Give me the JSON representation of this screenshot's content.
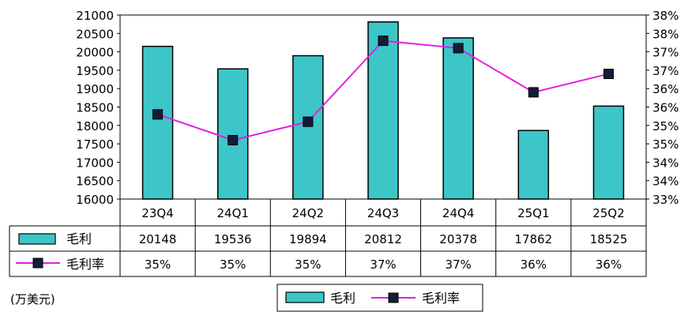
{
  "chart_data": {
    "type": "bar",
    "categories": [
      "23Q4",
      "24Q1",
      "24Q2",
      "24Q3",
      "24Q4",
      "25Q1",
      "25Q2"
    ],
    "series": [
      {
        "name": "毛利",
        "type": "bar",
        "axis": "left",
        "values": [
          20148,
          19536,
          19894,
          20812,
          20378,
          17862,
          18525
        ],
        "labels": [
          "20148",
          "19536",
          "19894",
          "20812",
          "20378",
          "17862",
          "18525"
        ]
      },
      {
        "name": "毛利率",
        "type": "line",
        "axis": "right",
        "values": [
          35.3,
          34.6,
          35.1,
          37.3,
          37.1,
          35.9,
          36.4
        ],
        "labels": [
          "35%",
          "35%",
          "35%",
          "37%",
          "37%",
          "36%",
          "36%"
        ]
      }
    ],
    "y_left": {
      "range": [
        16000,
        21000
      ],
      "ticks": [
        16000,
        16500,
        17000,
        17500,
        18000,
        18500,
        19000,
        19500,
        20000,
        20500,
        21000
      ]
    },
    "y_right": {
      "range": [
        33,
        38
      ],
      "ticks": [
        33,
        33.5,
        34,
        34.5,
        35,
        35.5,
        36,
        36.5,
        37,
        37.5,
        38
      ],
      "tick_labels": [
        "33%",
        "34%",
        "34%",
        "35%",
        "35%",
        "36%",
        "36%",
        "37%",
        "37%",
        "38%",
        "38%"
      ]
    },
    "unit_note": "(万美元)",
    "legend": {
      "position": "bottom",
      "items": [
        "毛利",
        "毛利率"
      ]
    },
    "grid": false,
    "colors": {
      "bar": "#3cc6c8",
      "line": "#e020e0",
      "marker": "#141c3c"
    }
  }
}
